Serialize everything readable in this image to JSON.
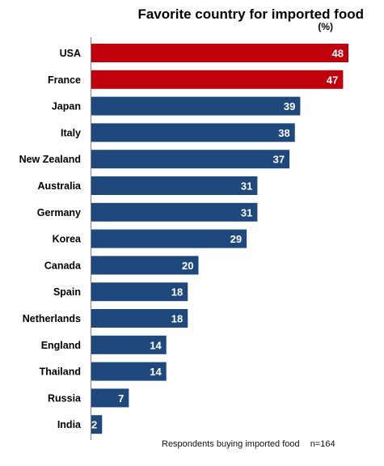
{
  "chart_data": {
    "type": "bar",
    "orientation": "horizontal",
    "title": "Favorite country for imported food",
    "unit": "(%)",
    "categories": [
      "USA",
      "France",
      "Japan",
      "Italy",
      "New Zealand",
      "Australia",
      "Germany",
      "Korea",
      "Canada",
      "Spain",
      "Netherlands",
      "England",
      "Thailand",
      "Russia",
      "India"
    ],
    "values": [
      48,
      47,
      39,
      38,
      37,
      31,
      31,
      29,
      20,
      18,
      18,
      14,
      14,
      7,
      2
    ],
    "highlight_colors": [
      "#c0000b",
      "#c0000b",
      "#1f497d",
      "#1f497d",
      "#1f497d",
      "#1f497d",
      "#1f497d",
      "#1f497d",
      "#1f497d",
      "#1f497d",
      "#1f497d",
      "#1f497d",
      "#1f497d",
      "#1f497d",
      "#1f497d"
    ],
    "xlim": [
      0,
      48
    ],
    "grid": false,
    "note": "Respondents buying imported food",
    "sample": "n=164"
  }
}
